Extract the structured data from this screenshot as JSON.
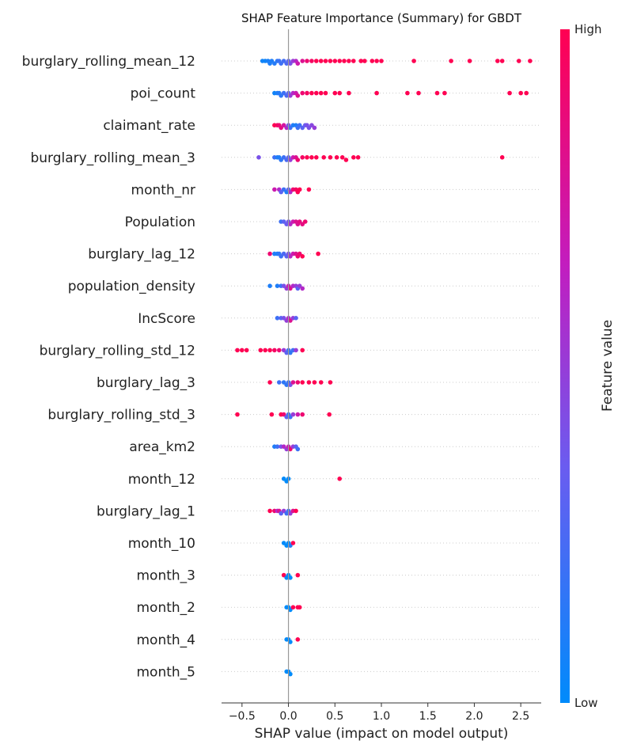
{
  "chart_data": {
    "type": "scatter",
    "subtype": "shap-beeswarm",
    "title": "SHAP Feature Importance (Summary) for GBDT",
    "xlabel": "SHAP value (impact on model output)",
    "xlim": [
      -0.72,
      2.72
    ],
    "xticks": [
      -0.5,
      0.0,
      0.5,
      1.0,
      1.5,
      2.0,
      2.5
    ],
    "tick_labels": [
      "−0.5",
      "0.0",
      "0.5",
      "1.0",
      "1.5",
      "2.0",
      "2.5"
    ],
    "colorbar": {
      "label": "Feature value",
      "high": "High",
      "low": "Low",
      "low_color": "#008bfb",
      "high_color": "#ff0052"
    },
    "grid": false,
    "features": [
      {
        "name": "burglary_rolling_mean_12",
        "points": [
          [
            -0.28,
            0.05
          ],
          [
            -0.25,
            0.05
          ],
          [
            -0.22,
            0.08
          ],
          [
            -0.2,
            0.1
          ],
          [
            -0.18,
            0.1
          ],
          [
            -0.15,
            0.12
          ],
          [
            -0.12,
            0.15
          ],
          [
            -0.1,
            0.18
          ],
          [
            -0.08,
            0.2
          ],
          [
            -0.05,
            0.22
          ],
          [
            -0.02,
            0.25
          ],
          [
            0.0,
            0.3
          ],
          [
            0.02,
            0.4
          ],
          [
            0.05,
            0.5
          ],
          [
            0.08,
            0.6
          ],
          [
            0.1,
            0.7
          ],
          [
            0.15,
            0.8
          ],
          [
            0.2,
            0.9
          ],
          [
            0.25,
            0.95
          ],
          [
            0.3,
            1.0
          ],
          [
            0.35,
            1.0
          ],
          [
            0.4,
            1.0
          ],
          [
            0.45,
            1.0
          ],
          [
            0.5,
            1.0
          ],
          [
            0.55,
            1.0
          ],
          [
            0.6,
            1.0
          ],
          [
            0.65,
            1.0
          ],
          [
            0.7,
            1.0
          ],
          [
            0.78,
            1.0
          ],
          [
            0.82,
            1.0
          ],
          [
            0.9,
            1.0
          ],
          [
            0.95,
            1.0
          ],
          [
            1.0,
            1.0
          ],
          [
            1.35,
            1.0
          ],
          [
            1.75,
            1.0
          ],
          [
            1.95,
            1.0
          ],
          [
            2.25,
            1.0
          ],
          [
            2.3,
            1.0
          ],
          [
            2.48,
            1.0
          ],
          [
            2.6,
            1.0
          ]
        ]
      },
      {
        "name": "poi_count",
        "points": [
          [
            -0.15,
            0.05
          ],
          [
            -0.12,
            0.1
          ],
          [
            -0.1,
            0.12
          ],
          [
            -0.08,
            0.15
          ],
          [
            -0.05,
            0.2
          ],
          [
            -0.02,
            0.25
          ],
          [
            0.0,
            0.3
          ],
          [
            0.02,
            0.5
          ],
          [
            0.05,
            0.6
          ],
          [
            0.08,
            0.7
          ],
          [
            0.1,
            0.8
          ],
          [
            0.15,
            0.9
          ],
          [
            0.2,
            0.95
          ],
          [
            0.25,
            1.0
          ],
          [
            0.3,
            1.0
          ],
          [
            0.35,
            1.0
          ],
          [
            0.4,
            1.0
          ],
          [
            0.5,
            1.0
          ],
          [
            0.55,
            1.0
          ],
          [
            0.65,
            1.0
          ],
          [
            0.95,
            1.0
          ],
          [
            1.28,
            1.0
          ],
          [
            1.4,
            1.0
          ],
          [
            1.6,
            1.0
          ],
          [
            1.68,
            1.0
          ],
          [
            2.38,
            1.0
          ],
          [
            2.5,
            1.0
          ],
          [
            2.56,
            1.0
          ]
        ]
      },
      {
        "name": "claimant_rate",
        "points": [
          [
            -0.15,
            1.0
          ],
          [
            -0.12,
            0.95
          ],
          [
            -0.1,
            0.9
          ],
          [
            -0.08,
            0.85
          ],
          [
            -0.05,
            0.75
          ],
          [
            -0.02,
            0.6
          ],
          [
            0.0,
            0.4
          ],
          [
            0.02,
            0.2
          ],
          [
            0.05,
            0.1
          ],
          [
            0.08,
            0.1
          ],
          [
            0.1,
            0.2
          ],
          [
            0.12,
            0.2
          ],
          [
            0.15,
            0.3
          ],
          [
            0.18,
            0.35
          ],
          [
            0.2,
            0.4
          ],
          [
            0.22,
            0.4
          ],
          [
            0.25,
            0.45
          ],
          [
            0.28,
            0.5
          ]
        ]
      },
      {
        "name": "burglary_rolling_mean_3",
        "points": [
          [
            -0.32,
            0.4
          ],
          [
            -0.15,
            0.2
          ],
          [
            -0.12,
            0.1
          ],
          [
            -0.1,
            0.1
          ],
          [
            -0.08,
            0.15
          ],
          [
            -0.05,
            0.2
          ],
          [
            -0.02,
            0.25
          ],
          [
            0.0,
            0.3
          ],
          [
            0.02,
            0.5
          ],
          [
            0.05,
            0.7
          ],
          [
            0.08,
            0.8
          ],
          [
            0.1,
            0.9
          ],
          [
            0.15,
            0.95
          ],
          [
            0.2,
            1.0
          ],
          [
            0.25,
            1.0
          ],
          [
            0.3,
            1.0
          ],
          [
            0.38,
            1.0
          ],
          [
            0.45,
            1.0
          ],
          [
            0.52,
            1.0
          ],
          [
            0.58,
            1.0
          ],
          [
            0.62,
            1.0
          ],
          [
            0.7,
            1.0
          ],
          [
            0.75,
            1.0
          ],
          [
            2.3,
            1.0
          ]
        ]
      },
      {
        "name": "month_nr",
        "points": [
          [
            -0.15,
            0.7
          ],
          [
            -0.1,
            0.6
          ],
          [
            -0.08,
            0.3
          ],
          [
            -0.05,
            0.2
          ],
          [
            -0.02,
            0.1
          ],
          [
            0.0,
            0.3
          ],
          [
            0.02,
            0.6
          ],
          [
            0.05,
            0.9
          ],
          [
            0.08,
            0.95
          ],
          [
            0.1,
            1.0
          ],
          [
            0.12,
            1.0
          ],
          [
            0.22,
            1.0
          ]
        ]
      },
      {
        "name": "Population",
        "points": [
          [
            -0.08,
            0.2
          ],
          [
            -0.05,
            0.3
          ],
          [
            -0.02,
            0.35
          ],
          [
            0.0,
            0.4
          ],
          [
            0.02,
            0.6
          ],
          [
            0.05,
            0.7
          ],
          [
            0.08,
            0.8
          ],
          [
            0.1,
            0.8
          ],
          [
            0.12,
            0.85
          ],
          [
            0.15,
            0.85
          ],
          [
            0.18,
            0.9
          ]
        ]
      },
      {
        "name": "burglary_lag_12",
        "points": [
          [
            -0.2,
            0.9
          ],
          [
            -0.15,
            0.1
          ],
          [
            -0.12,
            0.1
          ],
          [
            -0.1,
            0.15
          ],
          [
            -0.08,
            0.2
          ],
          [
            -0.05,
            0.25
          ],
          [
            -0.02,
            0.3
          ],
          [
            0.0,
            0.4
          ],
          [
            0.02,
            0.6
          ],
          [
            0.05,
            0.7
          ],
          [
            0.08,
            0.8
          ],
          [
            0.1,
            0.9
          ],
          [
            0.12,
            0.9
          ],
          [
            0.15,
            1.0
          ],
          [
            0.32,
            1.0
          ]
        ]
      },
      {
        "name": "population_density",
        "points": [
          [
            -0.2,
            0.1
          ],
          [
            -0.12,
            0.1
          ],
          [
            -0.08,
            0.2
          ],
          [
            -0.05,
            0.4
          ],
          [
            -0.02,
            0.5
          ],
          [
            0.0,
            0.7
          ],
          [
            0.02,
            0.8
          ],
          [
            0.05,
            0.6
          ],
          [
            0.08,
            0.5
          ],
          [
            0.1,
            0.3
          ],
          [
            0.12,
            0.5
          ],
          [
            0.15,
            0.6
          ]
        ]
      },
      {
        "name": "IncScore",
        "points": [
          [
            -0.12,
            0.2
          ],
          [
            -0.08,
            0.3
          ],
          [
            -0.05,
            0.4
          ],
          [
            -0.02,
            0.5
          ],
          [
            0.0,
            0.6
          ],
          [
            0.02,
            0.8
          ],
          [
            0.05,
            0.5
          ],
          [
            0.08,
            0.3
          ]
        ]
      },
      {
        "name": "burglary_rolling_std_12",
        "points": [
          [
            -0.55,
            1.0
          ],
          [
            -0.5,
            1.0
          ],
          [
            -0.45,
            1.0
          ],
          [
            -0.3,
            1.0
          ],
          [
            -0.25,
            1.0
          ],
          [
            -0.2,
            1.0
          ],
          [
            -0.15,
            0.95
          ],
          [
            -0.1,
            0.9
          ],
          [
            -0.05,
            0.5
          ],
          [
            -0.02,
            0.3
          ],
          [
            0.0,
            0.2
          ],
          [
            0.02,
            0.15
          ],
          [
            0.05,
            0.2
          ],
          [
            0.08,
            0.5
          ],
          [
            0.15,
            1.0
          ]
        ]
      },
      {
        "name": "burglary_lag_3",
        "points": [
          [
            -0.2,
            1.0
          ],
          [
            -0.1,
            0.2
          ],
          [
            -0.05,
            0.15
          ],
          [
            -0.02,
            0.15
          ],
          [
            0.0,
            0.2
          ],
          [
            0.02,
            0.4
          ],
          [
            0.05,
            0.8
          ],
          [
            0.1,
            0.9
          ],
          [
            0.15,
            1.0
          ],
          [
            0.22,
            1.0
          ],
          [
            0.28,
            1.0
          ],
          [
            0.35,
            1.0
          ],
          [
            0.45,
            1.0
          ]
        ]
      },
      {
        "name": "burglary_rolling_std_3",
        "points": [
          [
            -0.55,
            1.0
          ],
          [
            -0.18,
            1.0
          ],
          [
            -0.08,
            1.0
          ],
          [
            -0.05,
            0.9
          ],
          [
            -0.02,
            0.3
          ],
          [
            0.0,
            0.2
          ],
          [
            0.02,
            0.2
          ],
          [
            0.05,
            0.5
          ],
          [
            0.1,
            0.7
          ],
          [
            0.15,
            0.9
          ],
          [
            0.44,
            1.0
          ]
        ]
      },
      {
        "name": "area_km2",
        "points": [
          [
            -0.15,
            0.1
          ],
          [
            -0.12,
            0.2
          ],
          [
            -0.08,
            0.4
          ],
          [
            -0.05,
            0.6
          ],
          [
            -0.02,
            0.5
          ],
          [
            0.0,
            0.7
          ],
          [
            0.02,
            0.9
          ],
          [
            0.05,
            0.5
          ],
          [
            0.08,
            0.3
          ],
          [
            0.1,
            0.2
          ]
        ]
      },
      {
        "name": "month_12",
        "points": [
          [
            -0.05,
            0.0
          ],
          [
            -0.02,
            0.0
          ],
          [
            0.0,
            0.0
          ],
          [
            0.55,
            1.0
          ]
        ]
      },
      {
        "name": "burglary_lag_1",
        "points": [
          [
            -0.2,
            1.0
          ],
          [
            -0.15,
            0.9
          ],
          [
            -0.12,
            0.6
          ],
          [
            -0.1,
            0.8
          ],
          [
            -0.08,
            0.3
          ],
          [
            -0.05,
            0.5
          ],
          [
            -0.02,
            0.2
          ],
          [
            0.0,
            0.2
          ],
          [
            0.02,
            0.5
          ],
          [
            0.05,
            0.8
          ],
          [
            0.08,
            1.0
          ]
        ]
      },
      {
        "name": "month_10",
        "points": [
          [
            -0.05,
            0.0
          ],
          [
            -0.02,
            0.0
          ],
          [
            0.0,
            0.0
          ],
          [
            0.02,
            0.1
          ],
          [
            0.05,
            1.0
          ]
        ]
      },
      {
        "name": "month_3",
        "points": [
          [
            -0.05,
            1.0
          ],
          [
            -0.02,
            0.0
          ],
          [
            0.0,
            0.0
          ],
          [
            0.02,
            0.0
          ],
          [
            0.1,
            1.0
          ]
        ]
      },
      {
        "name": "month_2",
        "points": [
          [
            -0.02,
            0.0
          ],
          [
            0.0,
            0.0
          ],
          [
            0.02,
            0.0
          ],
          [
            0.05,
            1.0
          ],
          [
            0.1,
            1.0
          ],
          [
            0.12,
            1.0
          ]
        ]
      },
      {
        "name": "month_4",
        "points": [
          [
            -0.02,
            0.0
          ],
          [
            0.0,
            0.0
          ],
          [
            0.02,
            0.0
          ],
          [
            0.1,
            1.0
          ]
        ]
      },
      {
        "name": "month_5",
        "points": [
          [
            -0.02,
            0.0
          ],
          [
            0.0,
            0.0
          ],
          [
            0.02,
            0.0
          ]
        ]
      }
    ]
  }
}
